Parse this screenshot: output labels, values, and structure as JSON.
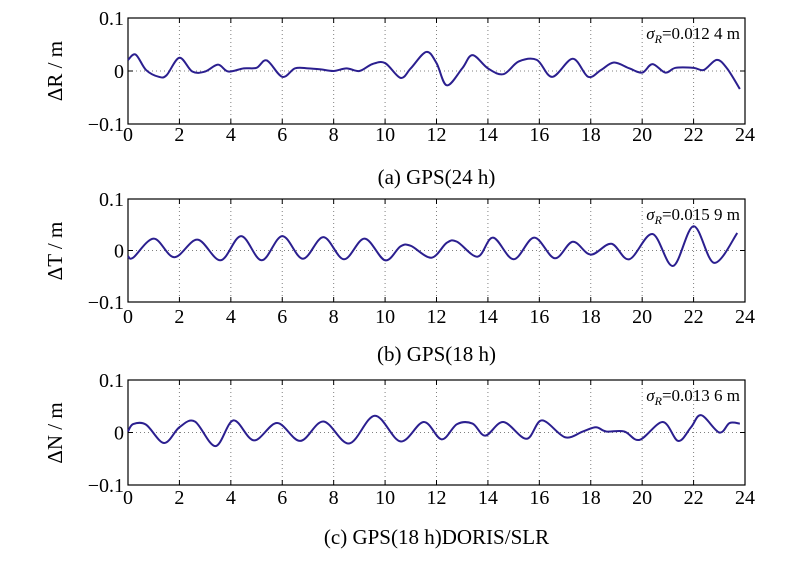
{
  "colors": {
    "line": "#2b1f8f",
    "grid": "#808080",
    "axis": "#000000"
  },
  "chart_data": [
    {
      "type": "line",
      "caption": "(a) GPS(24 h)",
      "ylabel": "ΔR / m",
      "ylabel_symbol": "Δ",
      "ylabel_var": "R",
      "ylabel_unit": " / m",
      "annotation": {
        "sigma": "σ",
        "sub": "R",
        "value": "=0.012 4 m"
      },
      "xlim": [
        0,
        24
      ],
      "ylim": [
        -0.1,
        0.1
      ],
      "xticks": [
        "0",
        "2",
        "4",
        "6",
        "8",
        "10",
        "12",
        "14",
        "16",
        "18",
        "20",
        "22",
        "24"
      ],
      "yticks": [
        "0.1",
        "0",
        "−0.1"
      ],
      "grid": true,
      "x": [
        0,
        0.3,
        0.7,
        1.2,
        1.5,
        2.0,
        2.5,
        3.0,
        3.5,
        3.9,
        4.5,
        5.0,
        5.4,
        6.0,
        6.5,
        7.0,
        7.5,
        8.0,
        8.5,
        9.0,
        9.5,
        10.0,
        10.6,
        11.0,
        11.6,
        12.0,
        12.4,
        13.0,
        13.4,
        14.0,
        14.6,
        15.2,
        15.9,
        16.5,
        17.3,
        17.9,
        18.4,
        18.9,
        19.5,
        20.0,
        20.4,
        20.9,
        21.3,
        22.0,
        22.4,
        22.9,
        23.3,
        23.8
      ],
      "y": [
        0.021,
        0.031,
        0.002,
        -0.011,
        -0.008,
        0.025,
        -0.001,
        -0.001,
        0.012,
        -0.001,
        0.005,
        0.006,
        0.02,
        -0.011,
        0.005,
        0.005,
        0.003,
        0.0,
        0.005,
        0.0,
        0.013,
        0.015,
        -0.013,
        0.005,
        0.036,
        0.015,
        -0.027,
        0.005,
        0.03,
        0.005,
        -0.006,
        0.018,
        0.021,
        -0.011,
        0.023,
        -0.011,
        0.002,
        0.016,
        0.005,
        -0.003,
        0.013,
        -0.003,
        0.006,
        0.006,
        0.002,
        0.021,
        0.005,
        -0.034
      ]
    },
    {
      "type": "line",
      "caption": "(b) GPS(18 h)",
      "ylabel": "ΔT / m",
      "ylabel_symbol": "Δ",
      "ylabel_var": "T",
      "ylabel_unit": " / m",
      "annotation": {
        "sigma": "σ",
        "sub": "R",
        "value": "=0.015 9 m"
      },
      "xlim": [
        0,
        24
      ],
      "ylim": [
        -0.1,
        0.1
      ],
      "xticks": [
        "0",
        "2",
        "4",
        "6",
        "8",
        "10",
        "12",
        "14",
        "16",
        "18",
        "20",
        "22",
        "24"
      ],
      "yticks": [
        "0.1",
        "0",
        "−0.1"
      ],
      "grid": true,
      "x": [
        0,
        0.2,
        1.0,
        1.8,
        2.7,
        3.6,
        4.4,
        5.2,
        6.0,
        6.8,
        7.6,
        8.4,
        9.2,
        10.0,
        10.6,
        11.0,
        11.8,
        12.4,
        12.8,
        13.6,
        14.2,
        15.0,
        15.8,
        16.6,
        17.3,
        18.0,
        18.8,
        19.5,
        20.4,
        21.2,
        22.0,
        22.8,
        23.7
      ],
      "y": [
        -0.011,
        -0.014,
        0.023,
        -0.013,
        0.021,
        -0.019,
        0.028,
        -0.019,
        0.028,
        -0.016,
        0.026,
        -0.017,
        0.023,
        -0.019,
        0.008,
        0.009,
        -0.014,
        0.015,
        0.017,
        -0.012,
        0.025,
        -0.017,
        0.025,
        -0.015,
        0.017,
        -0.008,
        0.013,
        -0.017,
        0.032,
        -0.03,
        0.047,
        -0.024,
        0.034
      ]
    },
    {
      "type": "line",
      "caption": "(c) GPS(18 h)DORIS/SLR",
      "ylabel": "ΔN / m",
      "ylabel_symbol": "Δ",
      "ylabel_var": "N",
      "ylabel_unit": " / m",
      "annotation": {
        "sigma": "σ",
        "sub": "R",
        "value": "=0.013 6 m"
      },
      "xlim": [
        0,
        24
      ],
      "ylim": [
        -0.1,
        0.1
      ],
      "xticks": [
        "0",
        "2",
        "4",
        "6",
        "8",
        "10",
        "12",
        "14",
        "16",
        "18",
        "20",
        "22",
        "24"
      ],
      "yticks": [
        "0.1",
        "0",
        "−0.1"
      ],
      "grid": true,
      "x": [
        0,
        0.2,
        0.7,
        1.4,
        2.0,
        2.6,
        3.4,
        4.1,
        4.9,
        5.8,
        6.7,
        7.6,
        8.6,
        9.6,
        10.6,
        11.5,
        12.2,
        12.8,
        13.4,
        13.9,
        14.6,
        15.5,
        16.1,
        17.0,
        17.7,
        18.2,
        18.6,
        19.3,
        19.9,
        20.8,
        21.4,
        21.9,
        22.3,
        23.0,
        23.4,
        23.8
      ],
      "y": [
        0.002,
        0.016,
        0.015,
        -0.02,
        0.01,
        0.021,
        -0.026,
        0.023,
        -0.015,
        0.018,
        -0.016,
        0.021,
        -0.021,
        0.032,
        -0.017,
        0.02,
        -0.013,
        0.016,
        0.017,
        -0.006,
        0.02,
        -0.012,
        0.023,
        -0.009,
        0.002,
        0.01,
        0.002,
        0.002,
        -0.014,
        0.02,
        -0.016,
        0.01,
        0.033,
        0.0,
        0.018,
        0.017
      ]
    }
  ]
}
